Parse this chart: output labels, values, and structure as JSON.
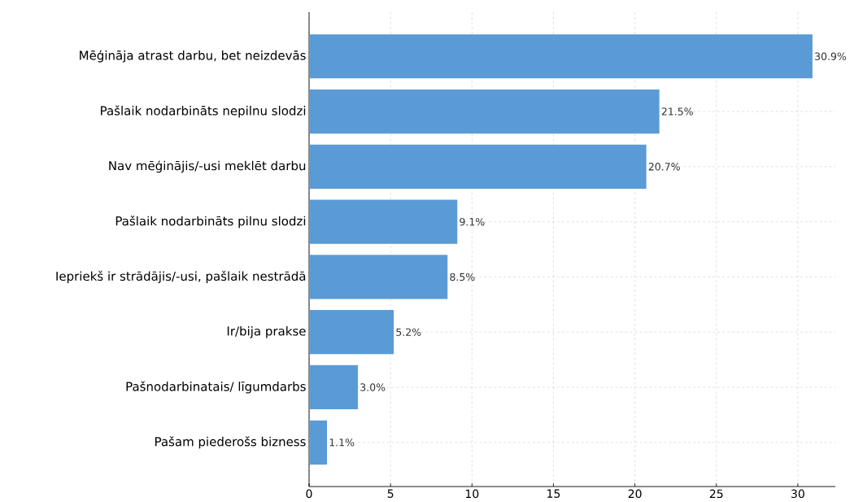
{
  "chart_data": {
    "type": "bar",
    "orientation": "horizontal",
    "categories": [
      "Mēģināja atrast darbu, bet neizdevās",
      "Pašlaik nodarbināts nepilnu slodzi",
      "Nav mēģinājis/-usi meklēt darbu",
      "Pašlaik nodarbināts pilnu slodzi",
      "Iepriekš ir strādājis/-usi, pašlaik nestrādā",
      "Ir/bija prakse",
      "Pašnodarbinatais/ līgumdarbs",
      "Pašam piederošs bizness"
    ],
    "values": [
      30.9,
      21.5,
      20.7,
      9.1,
      8.5,
      5.2,
      3.0,
      1.1
    ],
    "value_labels": [
      "30.9%",
      "21.5%",
      "20.7%",
      "9.1%",
      "8.5%",
      "5.2%",
      "3.0%",
      "1.1%"
    ],
    "color": "#5b9bd5",
    "xlim": [
      0,
      32.3
    ],
    "xticks": [
      0,
      5,
      10,
      15,
      20,
      25,
      30
    ],
    "grid": true
  }
}
